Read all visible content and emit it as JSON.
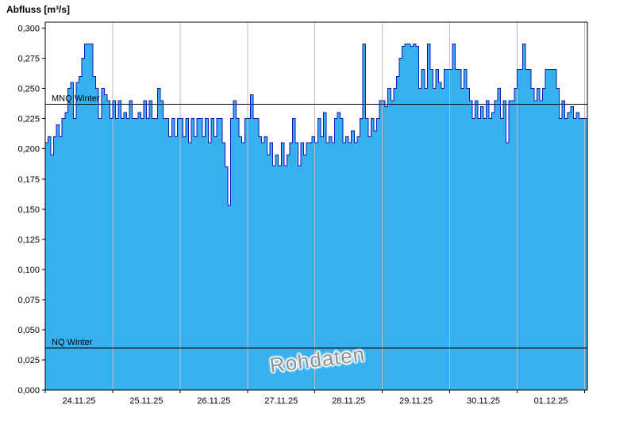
{
  "colors": {
    "fill": "#36b0ee",
    "line": "#1414b8",
    "grid": "#bdbdbd",
    "axis": "#000000",
    "reference": "#000000"
  },
  "chart_data": {
    "type": "area",
    "title": "Abfluss [m³/s]",
    "ylabel": "Abfluss [m³/s]",
    "xlabel": "",
    "watermark": "Rohdaten",
    "ylim": [
      0,
      0.305
    ],
    "grid": "vertical-day-lines",
    "legend": "none",
    "samples_per_day": 24,
    "x_labels": [
      "24.11.25",
      "25.11.25",
      "26.11.25",
      "27.11.25",
      "28.11.25",
      "29.11.25",
      "30.11.25",
      "01.12.25"
    ],
    "y_ticks": [
      {
        "value": 0.0,
        "label": "0,000"
      },
      {
        "value": 0.025,
        "label": "0,025"
      },
      {
        "value": 0.05,
        "label": "0,050"
      },
      {
        "value": 0.075,
        "label": "0,075"
      },
      {
        "value": 0.1,
        "label": "0,100"
      },
      {
        "value": 0.125,
        "label": "0,125"
      },
      {
        "value": 0.15,
        "label": "0,150"
      },
      {
        "value": 0.175,
        "label": "0,175"
      },
      {
        "value": 0.2,
        "label": "0,200"
      },
      {
        "value": 0.225,
        "label": "0,225"
      },
      {
        "value": 0.25,
        "label": "0,250"
      },
      {
        "value": 0.275,
        "label": "0,275"
      },
      {
        "value": 0.3,
        "label": "0,300"
      }
    ],
    "reference_lines": [
      {
        "label": "MNQ Winter",
        "value": 0.237
      },
      {
        "label": "NQ Winter",
        "value": 0.035
      }
    ],
    "values": [
      0.205,
      0.21,
      0.195,
      0.21,
      0.22,
      0.21,
      0.225,
      0.23,
      0.25,
      0.255,
      0.225,
      0.255,
      0.26,
      0.275,
      0.287,
      0.287,
      0.287,
      0.26,
      0.25,
      0.225,
      0.25,
      0.245,
      0.24,
      0.225,
      0.24,
      0.225,
      0.24,
      0.225,
      0.23,
      0.225,
      0.24,
      0.225,
      0.225,
      0.23,
      0.225,
      0.24,
      0.225,
      0.24,
      0.225,
      0.225,
      0.25,
      0.24,
      0.225,
      0.225,
      0.21,
      0.225,
      0.21,
      0.225,
      0.225,
      0.21,
      0.225,
      0.205,
      0.225,
      0.21,
      0.225,
      0.225,
      0.21,
      0.225,
      0.205,
      0.225,
      0.21,
      0.225,
      0.225,
      0.205,
      0.185,
      0.153,
      0.225,
      0.24,
      0.225,
      0.21,
      0.205,
      0.225,
      0.225,
      0.245,
      0.225,
      0.225,
      0.21,
      0.205,
      0.21,
      0.195,
      0.205,
      0.186,
      0.195,
      0.186,
      0.205,
      0.186,
      0.195,
      0.205,
      0.225,
      0.205,
      0.186,
      0.205,
      0.195,
      0.205,
      0.205,
      0.21,
      0.205,
      0.225,
      0.21,
      0.23,
      0.205,
      0.21,
      0.205,
      0.225,
      0.23,
      0.225,
      0.205,
      0.21,
      0.205,
      0.215,
      0.205,
      0.21,
      0.225,
      0.287,
      0.225,
      0.21,
      0.225,
      0.215,
      0.225,
      0.24,
      0.24,
      0.235,
      0.25,
      0.24,
      0.25,
      0.26,
      0.275,
      0.285,
      0.287,
      0.287,
      0.285,
      0.287,
      0.285,
      0.25,
      0.266,
      0.25,
      0.287,
      0.266,
      0.25,
      0.266,
      0.255,
      0.25,
      0.266,
      0.266,
      0.266,
      0.287,
      0.266,
      0.266,
      0.25,
      0.266,
      0.25,
      0.24,
      0.225,
      0.24,
      0.225,
      0.235,
      0.225,
      0.24,
      0.225,
      0.23,
      0.24,
      0.25,
      0.225,
      0.24,
      0.205,
      0.24,
      0.24,
      0.25,
      0.266,
      0.266,
      0.287,
      0.266,
      0.266,
      0.25,
      0.24,
      0.25,
      0.24,
      0.25,
      0.266,
      0.266,
      0.266,
      0.266,
      0.25,
      0.225,
      0.24,
      0.225,
      0.23,
      0.235,
      0.225,
      0.23,
      0.225,
      0.225,
      0.225,
      0.232
    ]
  }
}
